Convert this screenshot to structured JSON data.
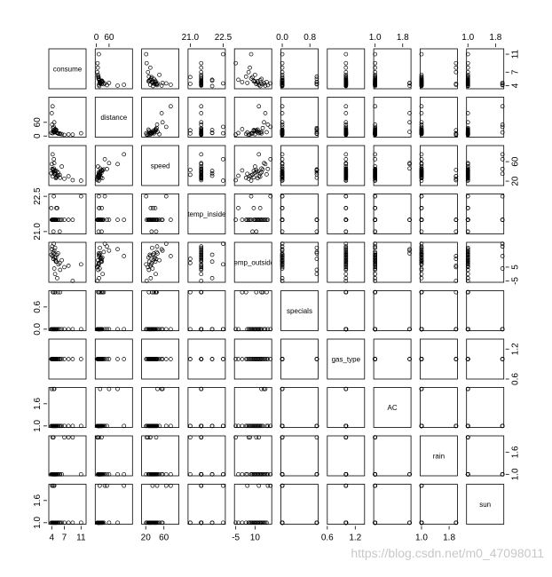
{
  "chart_data": {
    "type": "scatter_matrix",
    "watermark": "https://blog.csdn.net/m0_47098011",
    "variables": [
      {
        "name": "consume",
        "lim": [
          3.3,
          12.2
        ],
        "xticks": [
          4,
          7,
          11
        ],
        "yticks": [
          4,
          7,
          11
        ],
        "values": [
          5.0,
          4.2,
          5.5,
          3.9,
          4.5,
          6.4,
          4.4,
          5.0,
          4.6,
          11.0,
          4.1,
          4.8,
          5.3,
          7.0,
          4.0,
          4.7,
          5.9,
          4.3,
          8.0,
          4.9,
          4.5,
          5.2,
          6.0,
          4.6,
          4.4,
          9.0,
          5.1,
          4.2,
          4.8,
          5.6
        ]
      },
      {
        "name": "distance",
        "lim": [
          -5,
          170
        ],
        "xticks": [
          0,
          60
        ],
        "yticks": [
          0,
          60
        ],
        "values": [
          28,
          12,
          11.2,
          14,
          18,
          8,
          25,
          22,
          16,
          12,
          50,
          30,
          13,
          5,
          100,
          20,
          11,
          35,
          7,
          24,
          40,
          15,
          9,
          60,
          19,
          6,
          26,
          130,
          17,
          10
        ]
      },
      {
        "name": "speed",
        "lim": [
          11,
          93
        ],
        "xticks": [
          20,
          60
        ],
        "yticks": [
          20,
          60
        ],
        "values": [
          26,
          30,
          38,
          36,
          46,
          50,
          43,
          28,
          35,
          21,
          45,
          42,
          31,
          25,
          55,
          40,
          33,
          44,
          30,
          37,
          65,
          29,
          27,
          57,
          39,
          22,
          41,
          75,
          34,
          32
        ]
      },
      {
        "name": "temp_inside",
        "lim": [
          20.9,
          22.6
        ],
        "xticks": [
          {
            "value": 21,
            "label": "21.0"
          },
          22.5
        ],
        "yticks": [
          {
            "value": 21,
            "label": "21.0"
          },
          22.5
        ],
        "values": [
          21.5,
          21.5,
          21.5,
          22.0,
          21.5,
          21.5,
          21.0,
          21.5,
          21.5,
          22.5,
          21.5,
          21.5,
          22.0,
          21.5,
          21.5,
          21.5,
          21.0,
          21.5,
          21.5,
          21.5,
          22.5,
          21.5,
          21.5,
          21.5,
          21.5,
          21.5,
          22.0,
          21.5,
          21.5,
          21.5
        ]
      },
      {
        "name": "temp_outside",
        "lim": [
          -6,
          23
        ],
        "xticks": [
          -5,
          10
        ],
        "yticks": [
          -5,
          5
        ],
        "values": [
          12,
          13,
          15,
          14,
          15,
          10,
          11,
          9,
          4,
          7,
          20,
          0,
          -3,
          5,
          18,
          12,
          8,
          16,
          6,
          10,
          22,
          14,
          3,
          17,
          11,
          -5,
          9,
          13,
          19,
          7
        ]
      },
      {
        "name": "specials",
        "lim": [
          -0.04,
          1.04
        ],
        "xticks": [
          {
            "value": 0,
            "label": "0.0"
          },
          0.8
        ],
        "yticks": [
          {
            "value": 0,
            "label": "0.0"
          },
          0.6
        ],
        "values": [
          0,
          0,
          1,
          0,
          0,
          0,
          1,
          0,
          0,
          0,
          0,
          1,
          0,
          0,
          0,
          0,
          0,
          1,
          0,
          0,
          0,
          0,
          1,
          0,
          0,
          0,
          0,
          0,
          1,
          0
        ]
      },
      {
        "name": "gas_type",
        "lim": [
          0.6,
          1.4
        ],
        "xticks": [
          0.6,
          1.2
        ],
        "yticks": [
          0.6,
          1.2
        ],
        "values": [
          1,
          1,
          1,
          1,
          1,
          1,
          1,
          1,
          1,
          1,
          1,
          1,
          1,
          1,
          1,
          1,
          1,
          1,
          1,
          1,
          1,
          1,
          1,
          1,
          1,
          1,
          1,
          1,
          1,
          1
        ]
      },
      {
        "name": "AC",
        "lim": [
          0.96,
          2.04
        ],
        "xticks": [
          {
            "value": 1,
            "label": "1.0"
          },
          1.8
        ],
        "yticks": [
          {
            "value": 1,
            "label": "1.0"
          },
          1.6
        ],
        "values": [
          1,
          1,
          1,
          1,
          2,
          1,
          1,
          1,
          1,
          1,
          1,
          1,
          1,
          1,
          2,
          1,
          1,
          1,
          1,
          1,
          1,
          1,
          1,
          2,
          1,
          1,
          1,
          1,
          1,
          1
        ]
      },
      {
        "name": "rain",
        "lim": [
          0.96,
          2.04
        ],
        "xticks": [
          {
            "value": 1,
            "label": "1.0"
          },
          1.8
        ],
        "yticks": [
          {
            "value": 1,
            "label": "1.0"
          },
          1.6
        ],
        "values": [
          1,
          2,
          1,
          1,
          1,
          1,
          2,
          1,
          1,
          1,
          1,
          1,
          1,
          2,
          1,
          1,
          1,
          1,
          2,
          1,
          1,
          1,
          1,
          1,
          1,
          2,
          1,
          1,
          1,
          1
        ]
      },
      {
        "name": "sun",
        "lim": [
          0.96,
          2.04
        ],
        "xticks": [
          {
            "value": 1,
            "label": "1.0"
          },
          1.8
        ],
        "yticks": [
          {
            "value": 1,
            "label": "1.0"
          },
          1.6
        ],
        "values": [
          1,
          1,
          1,
          1,
          1,
          1,
          1,
          1,
          2,
          1,
          2,
          1,
          1,
          1,
          1,
          1,
          1,
          1,
          1,
          1,
          2,
          1,
          1,
          1,
          1,
          1,
          1,
          2,
          1,
          1
        ]
      }
    ]
  }
}
